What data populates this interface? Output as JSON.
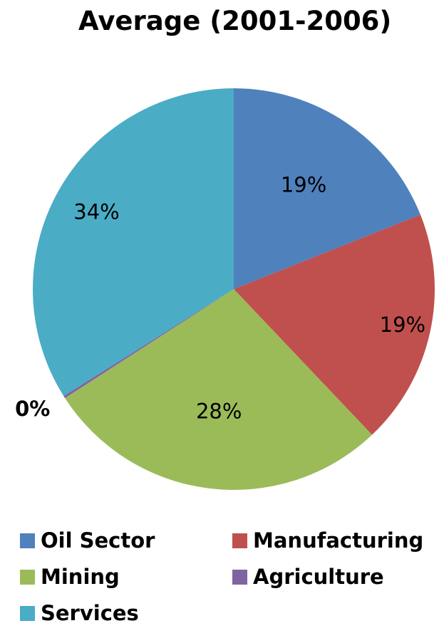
{
  "chart_data": {
    "type": "pie",
    "title": "Average (2001-2006)",
    "categories": [
      "Oil Sector",
      "Manufacturing",
      "Mining",
      "Agriculture",
      "Services"
    ],
    "values": [
      19,
      19,
      28,
      0.2,
      34
    ],
    "labels": [
      "19%",
      "19%",
      "28%",
      "0%",
      "34%"
    ],
    "colors": [
      "#4F81BD",
      "#C0504D",
      "#9BBB59",
      "#8064A2",
      "#4BACC6"
    ],
    "start_angle": "12 o'clock",
    "direction": "clockwise",
    "legend_placement": "bottom"
  }
}
